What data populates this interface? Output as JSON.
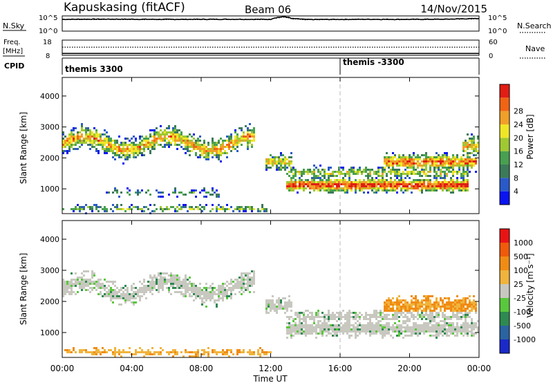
{
  "header": {
    "station": "Kapuskasing (fitACF)",
    "beam": "Beam 06",
    "date": "14/Nov/2015"
  },
  "panels": {
    "nsky_label": "N.Sky",
    "nsearch_label": "N.Search",
    "freq_label_1": "Freq.",
    "freq_label_2": "[MHz]",
    "nave_label": "Nave",
    "cpid_label": "CPID",
    "noise_ticks_left": [
      "10^5",
      "10^0"
    ],
    "noise_ticks_right": [
      "10^5",
      "10^0"
    ],
    "freq_ticks": [
      "18",
      "8"
    ],
    "nave_ticks": [
      "60",
      "0"
    ],
    "cpid_segments": [
      {
        "label": "themis 3300",
        "start_hour": 0
      },
      {
        "label": "themis -3300",
        "start_hour": 16
      }
    ]
  },
  "colorbars": {
    "power": {
      "label": "Power [dB]",
      "ticks": [
        "4",
        "8",
        "12",
        "16",
        "20",
        "24",
        "28"
      ],
      "colors": [
        "#0a14f0",
        "#2a5ac8",
        "#3c7a5a",
        "#48a050",
        "#a0c832",
        "#f0e628",
        "#f0a028",
        "#f06414",
        "#e01e14"
      ]
    },
    "velocity": {
      "label": "Velocity [m s⁻¹]",
      "ticks": [
        "1000",
        "500",
        "100",
        "25",
        "-25",
        "-100",
        "-500",
        "-1000"
      ],
      "colors": [
        "#1a2ac8",
        "#2a64a0",
        "#2e8a50",
        "#5ac83c",
        "#c8c8c0",
        "#f0b43c",
        "#f08c14",
        "#f05a0a",
        "#e81414"
      ]
    }
  },
  "chart_data": [
    {
      "type": "line",
      "title": "N.Sky / N.Search",
      "y_scale": "log",
      "ylim": [
        1,
        100000
      ],
      "x_hours": [
        0,
        2,
        4,
        6,
        8,
        10,
        12,
        12.8,
        13.2,
        14,
        16,
        18,
        20,
        22,
        24
      ],
      "series": [
        {
          "name": "N.Sky",
          "values": [
            10000,
            12000,
            11000,
            10000,
            10500,
            11000,
            10000,
            90000,
            20000,
            9000,
            10000,
            10500,
            10000,
            11000,
            20000
          ]
        },
        {
          "name": "N.Search",
          "values": [
            8000,
            9000,
            8500,
            8000,
            8500,
            9000,
            8000,
            60000,
            15000,
            7000,
            8000,
            8500,
            8000,
            9000,
            15000
          ]
        }
      ]
    },
    {
      "type": "line",
      "title": "Freq. / Nave",
      "series": [
        {
          "name": "Freq.",
          "units": "MHz",
          "ylim": [
            8,
            18
          ],
          "x_hours": [
            0,
            24
          ],
          "values": [
            9.2,
            9.2
          ]
        },
        {
          "name": "Nave",
          "ylim": [
            0,
            60
          ],
          "x_hours": [
            0,
            24
          ],
          "values": [
            32,
            32
          ]
        }
      ]
    },
    {
      "type": "heatmap",
      "ylabel": "Slant Range [km]",
      "xlabel": "Time UT",
      "x_ticks": [
        "00:00",
        "04:00",
        "08:00",
        "12:00",
        "16:00",
        "20:00",
        "00:00"
      ],
      "xlim_hours": [
        0,
        24
      ],
      "y_ticks": [
        "1000",
        "2000",
        "3000",
        "4000"
      ],
      "ylim": [
        200,
        4600
      ],
      "colorbar": "Power [dB]",
      "bands": [
        {
          "t0": 0.0,
          "t1": 11.0,
          "r_center": 2500,
          "r_width": 450,
          "amp": 0.75,
          "wave": 220
        },
        {
          "t0": 11.6,
          "t1": 13.2,
          "r_center": 1900,
          "r_width": 350,
          "amp": 0.7,
          "wave": 0
        },
        {
          "t0": 12.8,
          "t1": 23.4,
          "r_center": 1150,
          "r_width": 300,
          "amp": 1.0,
          "wave": 0
        },
        {
          "t0": 12.8,
          "t1": 23.4,
          "r_center": 1550,
          "r_width": 250,
          "amp": 0.6,
          "wave": 0
        },
        {
          "t0": 18.5,
          "t1": 23.8,
          "r_center": 1900,
          "r_width": 350,
          "amp": 0.9,
          "wave": 0
        },
        {
          "t0": 0.0,
          "t1": 12.0,
          "r_center": 400,
          "r_width": 160,
          "amp": 0.5,
          "wave": 0
        },
        {
          "t0": 2.5,
          "t1": 9.0,
          "r_center": 900,
          "r_width": 200,
          "amp": 0.3,
          "wave": 0
        },
        {
          "t0": 23.0,
          "t1": 24.0,
          "r_center": 2400,
          "r_width": 500,
          "amp": 0.7,
          "wave": 0
        }
      ]
    },
    {
      "type": "heatmap",
      "ylabel": "Slant Range [km]",
      "xlabel": "Time UT",
      "x_ticks": [
        "00:00",
        "04:00",
        "08:00",
        "12:00",
        "16:00",
        "20:00",
        "00:00"
      ],
      "xlim_hours": [
        0,
        24
      ],
      "y_ticks": [
        "1000",
        "2000",
        "3000",
        "4000"
      ],
      "ylim": [
        200,
        4600
      ],
      "colorbar": "Velocity [m s⁻¹]",
      "bands": [
        {
          "t0": 0.0,
          "t1": 11.0,
          "r_center": 2450,
          "r_width": 420,
          "amp": 0.75,
          "wave": 220
        },
        {
          "t0": 11.6,
          "t1": 13.2,
          "r_center": 1900,
          "r_width": 350,
          "amp": 0.7,
          "wave": 0
        },
        {
          "t0": 12.8,
          "t1": 23.4,
          "r_center": 1150,
          "r_width": 300,
          "amp": 1.0,
          "wave": 0
        },
        {
          "t0": 12.8,
          "t1": 23.4,
          "r_center": 1550,
          "r_width": 250,
          "amp": 0.6,
          "wave": 0
        },
        {
          "t0": 18.5,
          "t1": 23.8,
          "r_center": 1900,
          "r_width": 350,
          "amp": 0.9,
          "wave": 0
        },
        {
          "t0": 0.0,
          "t1": 12.0,
          "r_center": 400,
          "r_width": 160,
          "amp": 0.5,
          "wave": 0
        },
        {
          "t0": 23.0,
          "t1": 24.0,
          "r_center": 1200,
          "r_width": 350,
          "amp": 0.7,
          "wave": 0
        }
      ]
    }
  ]
}
